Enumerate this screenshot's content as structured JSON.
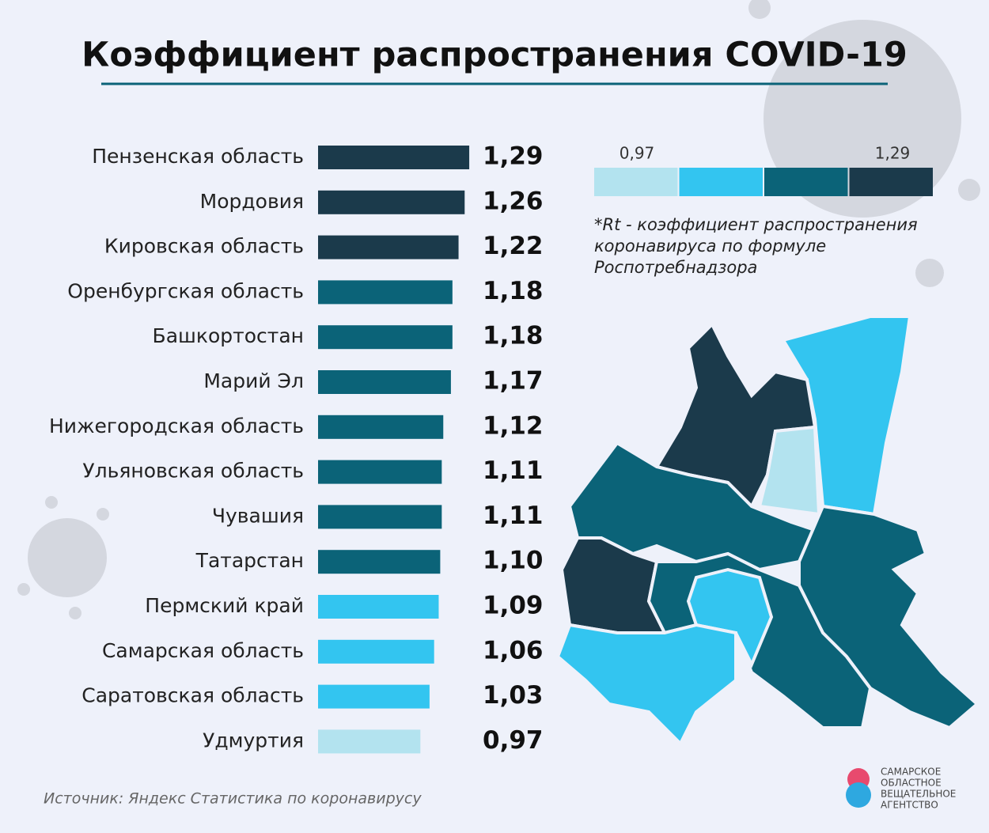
{
  "chart_data": {
    "type": "bar",
    "orientation": "horizontal",
    "title": "Коэффициент распространения COVID-19",
    "categories": [
      "Пензенская область",
      "Мордовия",
      "Кировская область",
      "Оренбургская область",
      "Башкортостан",
      "Марий Эл",
      "Нижегородская область",
      "Ульяновская область",
      "Чувашия",
      "Татарстан",
      "Пермский край",
      "Самарская область",
      "Саратовская область",
      "Удмуртия"
    ],
    "values": [
      1.29,
      1.26,
      1.22,
      1.18,
      1.18,
      1.17,
      1.12,
      1.11,
      1.11,
      1.1,
      1.09,
      1.06,
      1.03,
      0.97
    ],
    "value_labels": [
      "1,29",
      "1,26",
      "1,22",
      "1,18",
      "1,18",
      "1,17",
      "1,12",
      "1,11",
      "1,11",
      "1,10",
      "1,09",
      "1,06",
      "1,03",
      "0,97"
    ],
    "colors": [
      "#1b3a4b",
      "#1b3a4b",
      "#1b3a4b",
      "#0b6378",
      "#0b6378",
      "#0b6378",
      "#0b6378",
      "#0b6378",
      "#0b6378",
      "#0b6378",
      "#33c5f0",
      "#33c5f0",
      "#33c5f0",
      "#b3e3ef"
    ],
    "xlim": [
      0.3,
      1.3
    ],
    "legend": {
      "min_label": "0,97",
      "max_label": "1,29",
      "colors": [
        "#b3e3ef",
        "#33c5f0",
        "#0b6378",
        "#1b3a4b"
      ]
    },
    "note": [
      "*Rt - коэффициент распространения",
      "коронавируса по формуле",
      "Роспотребнадзора"
    ],
    "source": "Источник: Яндекс Статистика по коронавирусу",
    "logo": [
      "САМАРСКОЕ",
      "ОБЛАСТНОЕ",
      "ВЕЩАТЕЛЬНОЕ",
      "АГЕНТСТВО"
    ]
  }
}
